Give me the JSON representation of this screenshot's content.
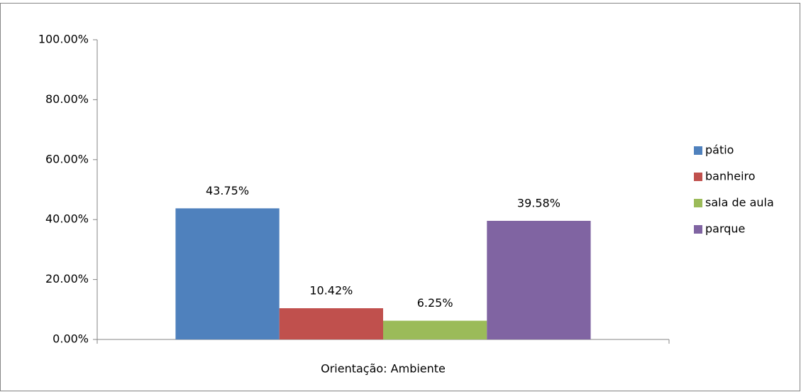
{
  "chart_data": {
    "type": "bar",
    "categories": [
      "Orientação: Ambiente"
    ],
    "series": [
      {
        "name": "pátio",
        "color": "#4f81bd",
        "values": [
          43.75
        ],
        "value_labels": [
          "43.75%"
        ]
      },
      {
        "name": "banheiro",
        "color": "#c0504d",
        "values": [
          10.42
        ],
        "value_labels": [
          "10.42%"
        ]
      },
      {
        "name": "sala de aula",
        "color": "#9bbb59",
        "values": [
          6.25
        ],
        "value_labels": [
          "6.25%"
        ]
      },
      {
        "name": "parque",
        "color": "#8064a2",
        "values": [
          39.58
        ],
        "value_labels": [
          "39.58%"
        ]
      }
    ],
    "ylim": [
      0,
      100
    ],
    "yticks": [
      {
        "value": 0,
        "label": "0.00%"
      },
      {
        "value": 20,
        "label": "20.00%"
      },
      {
        "value": 40,
        "label": "40.00%"
      },
      {
        "value": 60,
        "label": "60.00%"
      },
      {
        "value": 80,
        "label": "80.00%"
      },
      {
        "value": 100,
        "label": "100.00%"
      }
    ],
    "grid": false,
    "legend": "right"
  }
}
